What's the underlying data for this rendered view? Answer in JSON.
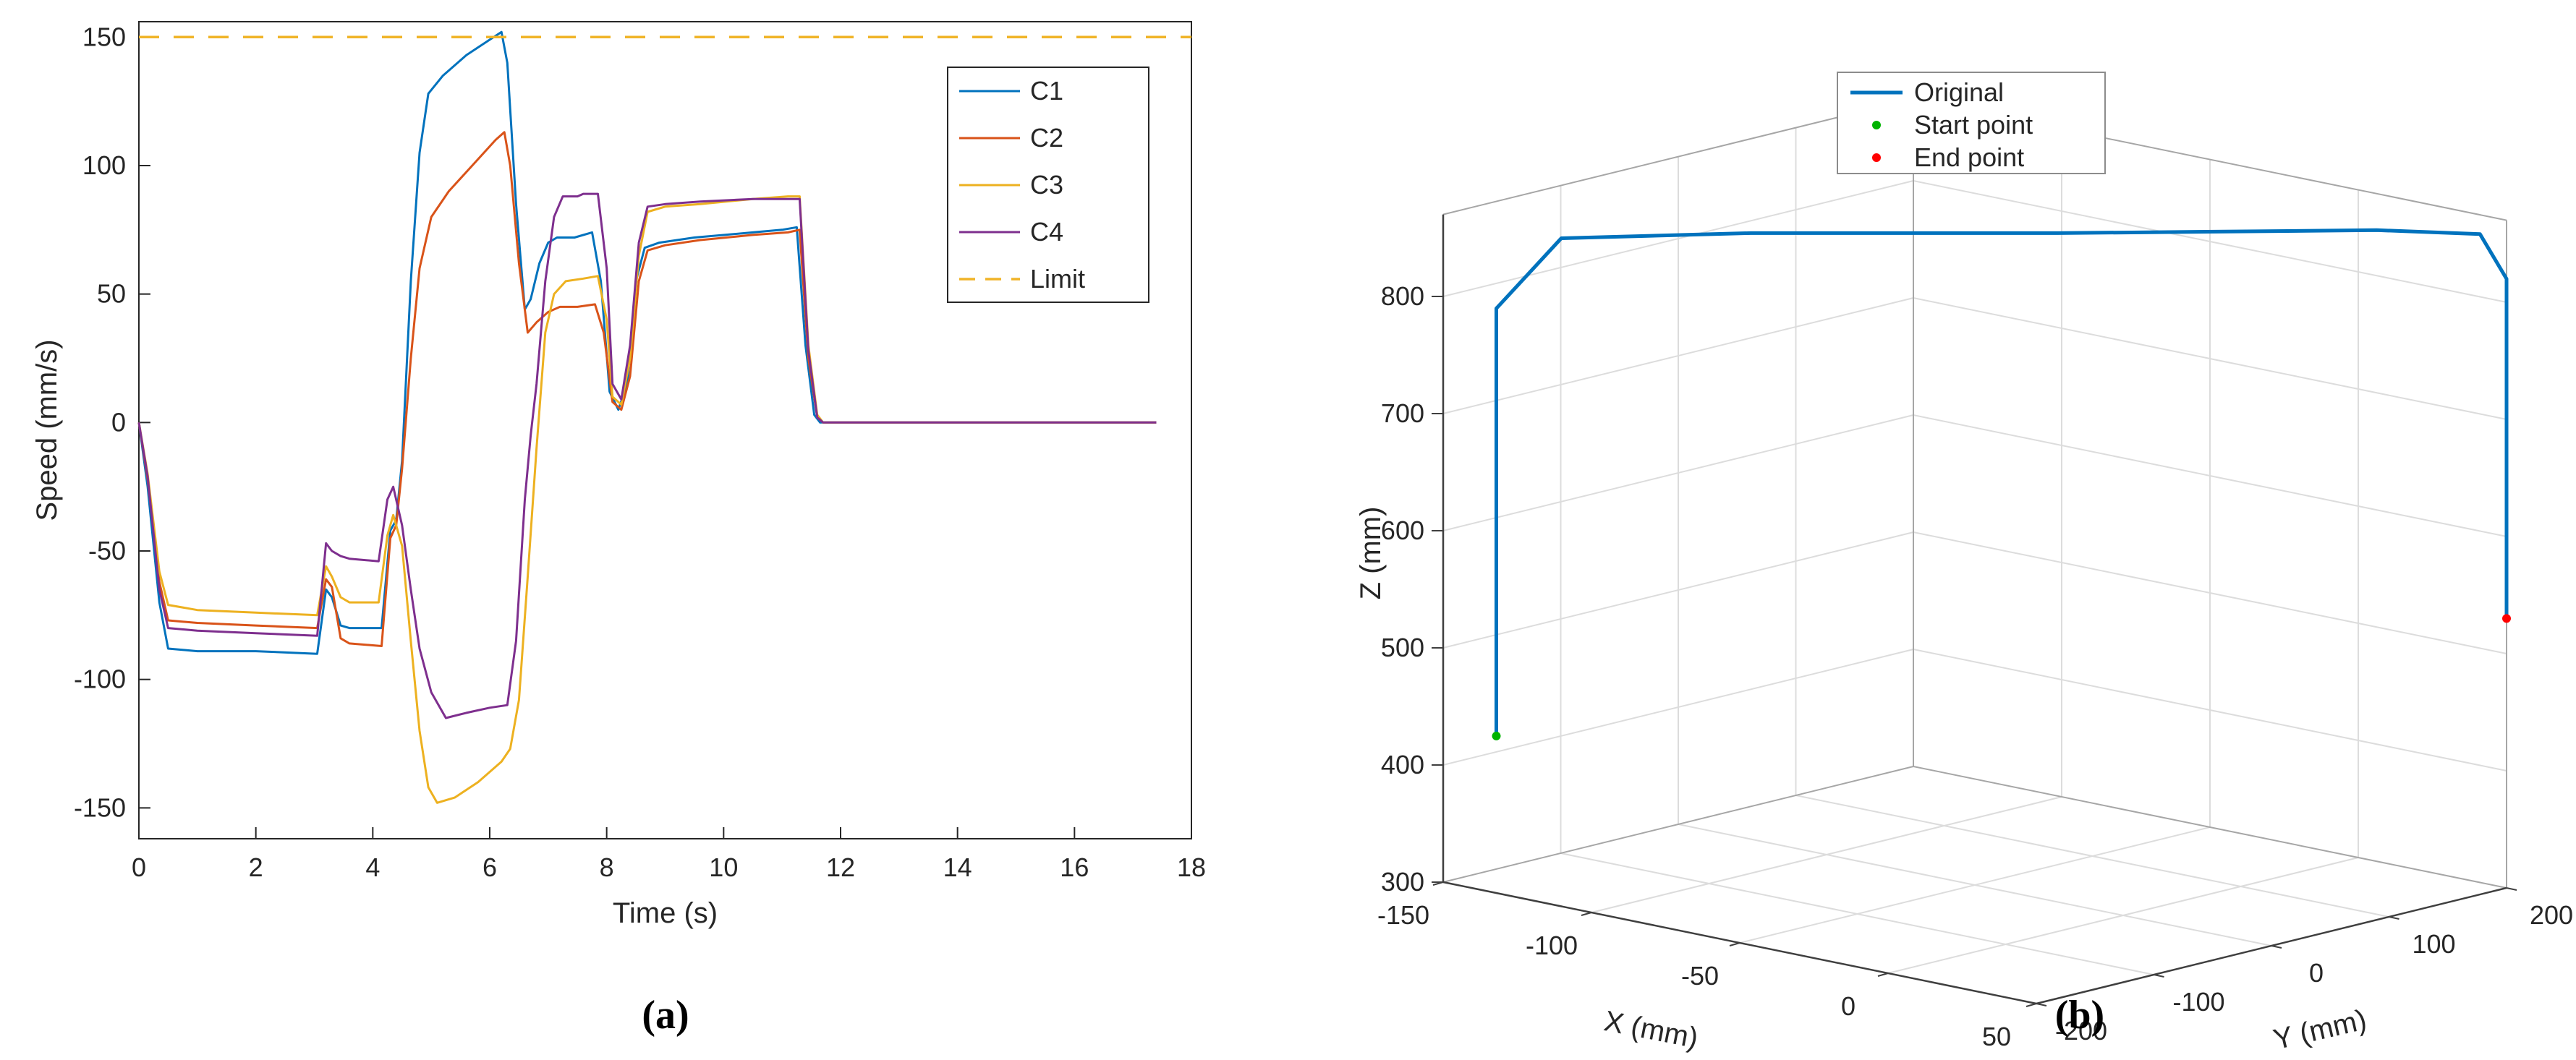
{
  "page": {
    "background": "#ffffff"
  },
  "captions": {
    "a": "(a)",
    "b": "(b)"
  },
  "chart_data": [
    {
      "id": "speed-profile",
      "type": "line",
      "title": "",
      "xlabel": "Time (s)",
      "ylabel": "Speed (mm/s)",
      "xlim": [
        0,
        18
      ],
      "ylim": [
        -162,
        156
      ],
      "xticks": [
        0,
        2,
        4,
        6,
        8,
        10,
        12,
        14,
        16,
        18
      ],
      "yticks": [
        -150,
        -100,
        -50,
        0,
        50,
        100,
        150
      ],
      "grid": false,
      "axis_color": "#262626",
      "legend_position": "top-right",
      "series": [
        {
          "name": "C1",
          "color": "#0072BD",
          "style": "solid",
          "points": [
            [
              0,
              0
            ],
            [
              0.15,
              -25
            ],
            [
              0.35,
              -70
            ],
            [
              0.5,
              -88
            ],
            [
              1,
              -89
            ],
            [
              2,
              -89
            ],
            [
              3.05,
              -90
            ],
            [
              3.2,
              -65
            ],
            [
              3.3,
              -68
            ],
            [
              3.45,
              -79
            ],
            [
              3.6,
              -80
            ],
            [
              4.15,
              -80
            ],
            [
              4.3,
              -42
            ],
            [
              4.4,
              -38
            ],
            [
              4.5,
              -15
            ],
            [
              4.65,
              55
            ],
            [
              4.8,
              105
            ],
            [
              4.95,
              128
            ],
            [
              5.2,
              135
            ],
            [
              5.6,
              143
            ],
            [
              6.0,
              149
            ],
            [
              6.2,
              152
            ],
            [
              6.3,
              140
            ],
            [
              6.45,
              85
            ],
            [
              6.6,
              44
            ],
            [
              6.7,
              48
            ],
            [
              6.85,
              62
            ],
            [
              7.0,
              70
            ],
            [
              7.15,
              72
            ],
            [
              7.45,
              72
            ],
            [
              7.75,
              74
            ],
            [
              7.9,
              55
            ],
            [
              8.05,
              12
            ],
            [
              8.2,
              5
            ],
            [
              8.35,
              15
            ],
            [
              8.5,
              55
            ],
            [
              8.65,
              68
            ],
            [
              8.9,
              70
            ],
            [
              9.5,
              72
            ],
            [
              10.5,
              74
            ],
            [
              11.0,
              75
            ],
            [
              11.25,
              76
            ],
            [
              11.4,
              30
            ],
            [
              11.55,
              3
            ],
            [
              11.65,
              0
            ],
            [
              17.4,
              0
            ]
          ]
        },
        {
          "name": "C2",
          "color": "#D95319",
          "style": "solid",
          "points": [
            [
              0,
              0
            ],
            [
              0.15,
              -22
            ],
            [
              0.35,
              -62
            ],
            [
              0.5,
              -77
            ],
            [
              1,
              -78
            ],
            [
              2,
              -79
            ],
            [
              3.05,
              -80
            ],
            [
              3.2,
              -61
            ],
            [
              3.3,
              -64
            ],
            [
              3.45,
              -84
            ],
            [
              3.6,
              -86
            ],
            [
              4.15,
              -87
            ],
            [
              4.3,
              -45
            ],
            [
              4.4,
              -40
            ],
            [
              4.5,
              -18
            ],
            [
              4.65,
              25
            ],
            [
              4.8,
              60
            ],
            [
              5.0,
              80
            ],
            [
              5.3,
              90
            ],
            [
              5.7,
              100
            ],
            [
              6.1,
              110
            ],
            [
              6.25,
              113
            ],
            [
              6.35,
              100
            ],
            [
              6.5,
              62
            ],
            [
              6.65,
              35
            ],
            [
              6.8,
              39
            ],
            [
              7.0,
              43
            ],
            [
              7.2,
              45
            ],
            [
              7.5,
              45
            ],
            [
              7.8,
              46
            ],
            [
              7.95,
              35
            ],
            [
              8.1,
              8
            ],
            [
              8.25,
              5
            ],
            [
              8.4,
              18
            ],
            [
              8.55,
              55
            ],
            [
              8.7,
              67
            ],
            [
              9.0,
              69
            ],
            [
              9.6,
              71
            ],
            [
              10.5,
              73
            ],
            [
              11.1,
              74
            ],
            [
              11.3,
              75
            ],
            [
              11.45,
              25
            ],
            [
              11.6,
              2
            ],
            [
              11.7,
              0
            ],
            [
              17.4,
              0
            ]
          ]
        },
        {
          "name": "C3",
          "color": "#EDB120",
          "style": "solid",
          "points": [
            [
              0,
              0
            ],
            [
              0.15,
              -20
            ],
            [
              0.35,
              -58
            ],
            [
              0.5,
              -71
            ],
            [
              1,
              -73
            ],
            [
              2,
              -74
            ],
            [
              3.05,
              -75
            ],
            [
              3.2,
              -56
            ],
            [
              3.3,
              -60
            ],
            [
              3.45,
              -68
            ],
            [
              3.6,
              -70
            ],
            [
              4.1,
              -70
            ],
            [
              4.25,
              -44
            ],
            [
              4.35,
              -36
            ],
            [
              4.5,
              -48
            ],
            [
              4.65,
              -85
            ],
            [
              4.8,
              -120
            ],
            [
              4.95,
              -142
            ],
            [
              5.1,
              -148
            ],
            [
              5.4,
              -146
            ],
            [
              5.8,
              -140
            ],
            [
              6.2,
              -132
            ],
            [
              6.35,
              -127
            ],
            [
              6.5,
              -108
            ],
            [
              6.65,
              -60
            ],
            [
              6.8,
              -10
            ],
            [
              6.95,
              35
            ],
            [
              7.1,
              50
            ],
            [
              7.3,
              55
            ],
            [
              7.6,
              56
            ],
            [
              7.85,
              57
            ],
            [
              8.0,
              40
            ],
            [
              8.1,
              10
            ],
            [
              8.25,
              7
            ],
            [
              8.4,
              25
            ],
            [
              8.55,
              65
            ],
            [
              8.7,
              82
            ],
            [
              9.0,
              84
            ],
            [
              9.6,
              85
            ],
            [
              10.5,
              87
            ],
            [
              11.1,
              88
            ],
            [
              11.3,
              88
            ],
            [
              11.45,
              30
            ],
            [
              11.6,
              3
            ],
            [
              11.7,
              0
            ],
            [
              17.4,
              0
            ]
          ]
        },
        {
          "name": "C4",
          "color": "#7E2F8E",
          "style": "solid",
          "points": [
            [
              0,
              0
            ],
            [
              0.15,
              -21
            ],
            [
              0.35,
              -65
            ],
            [
              0.5,
              -80
            ],
            [
              1,
              -81
            ],
            [
              2,
              -82
            ],
            [
              3.05,
              -83
            ],
            [
              3.2,
              -47
            ],
            [
              3.3,
              -50
            ],
            [
              3.45,
              -52
            ],
            [
              3.6,
              -53
            ],
            [
              4.1,
              -54
            ],
            [
              4.25,
              -30
            ],
            [
              4.35,
              -25
            ],
            [
              4.5,
              -40
            ],
            [
              4.65,
              -65
            ],
            [
              4.8,
              -88
            ],
            [
              5.0,
              -105
            ],
            [
              5.25,
              -115
            ],
            [
              5.6,
              -113
            ],
            [
              6.0,
              -111
            ],
            [
              6.3,
              -110
            ],
            [
              6.45,
              -85
            ],
            [
              6.6,
              -30
            ],
            [
              6.7,
              -5
            ],
            [
              6.8,
              15
            ],
            [
              6.95,
              55
            ],
            [
              7.1,
              80
            ],
            [
              7.25,
              88
            ],
            [
              7.5,
              88
            ],
            [
              7.6,
              89
            ],
            [
              7.85,
              89
            ],
            [
              8.0,
              60
            ],
            [
              8.1,
              15
            ],
            [
              8.25,
              9
            ],
            [
              8.4,
              30
            ],
            [
              8.55,
              70
            ],
            [
              8.7,
              84
            ],
            [
              9.0,
              85
            ],
            [
              9.6,
              86
            ],
            [
              10.5,
              87
            ],
            [
              11.1,
              87
            ],
            [
              11.3,
              87
            ],
            [
              11.45,
              28
            ],
            [
              11.6,
              2
            ],
            [
              11.7,
              0
            ],
            [
              17.4,
              0
            ]
          ]
        },
        {
          "name": "Limit",
          "color": "#F0B428",
          "style": "dashed",
          "points": [
            [
              0,
              150
            ],
            [
              18,
              150
            ]
          ]
        }
      ]
    },
    {
      "id": "trajectory-3d",
      "type": "line3d",
      "xlabel": "X (mm)",
      "ylabel": "Y (mm)",
      "zlabel": "Z (mm)",
      "xlim": [
        -150,
        50
      ],
      "ylim": [
        -200,
        200
      ],
      "zlim": [
        300,
        870
      ],
      "xticks": [
        -150,
        -100,
        -50,
        0,
        50
      ],
      "yticks": [
        -200,
        -100,
        0,
        100,
        200
      ],
      "zticks": [
        300,
        400,
        500,
        600,
        700,
        800
      ],
      "grid": true,
      "grid_color": "#dcdcdc",
      "pane_edge_color": "#a6a6a6",
      "axis_color": "#3f3f3f",
      "series": [
        {
          "name": "Original",
          "color": "#0072BD",
          "style": "solid",
          "points3d": [
            [
              -140,
              -180,
              425
            ],
            [
              -140,
              -180,
              700
            ],
            [
              -140,
              -180,
              790
            ],
            [
              -128,
              -155,
              850
            ],
            [
              -90,
              -90,
              858
            ],
            [
              -30,
              20,
              862
            ],
            [
              30,
              140,
              866
            ],
            [
              45,
              190,
              858
            ],
            [
              50,
              200,
              820
            ],
            [
              50,
              200,
              690
            ],
            [
              50,
              200,
              530
            ]
          ]
        }
      ],
      "markers": [
        {
          "label": "Start point",
          "color": "#00B300",
          "point3d": [
            -140,
            -180,
            425
          ]
        },
        {
          "label": "End point",
          "color": "#FF0000",
          "point3d": [
            50,
            200,
            530
          ]
        }
      ],
      "legend": [
        {
          "label": "Original",
          "type": "line",
          "color": "#0072BD"
        },
        {
          "label": "Start point",
          "type": "marker",
          "color": "#00B300"
        },
        {
          "label": "End point",
          "type": "marker",
          "color": "#FF0000"
        }
      ]
    }
  ]
}
